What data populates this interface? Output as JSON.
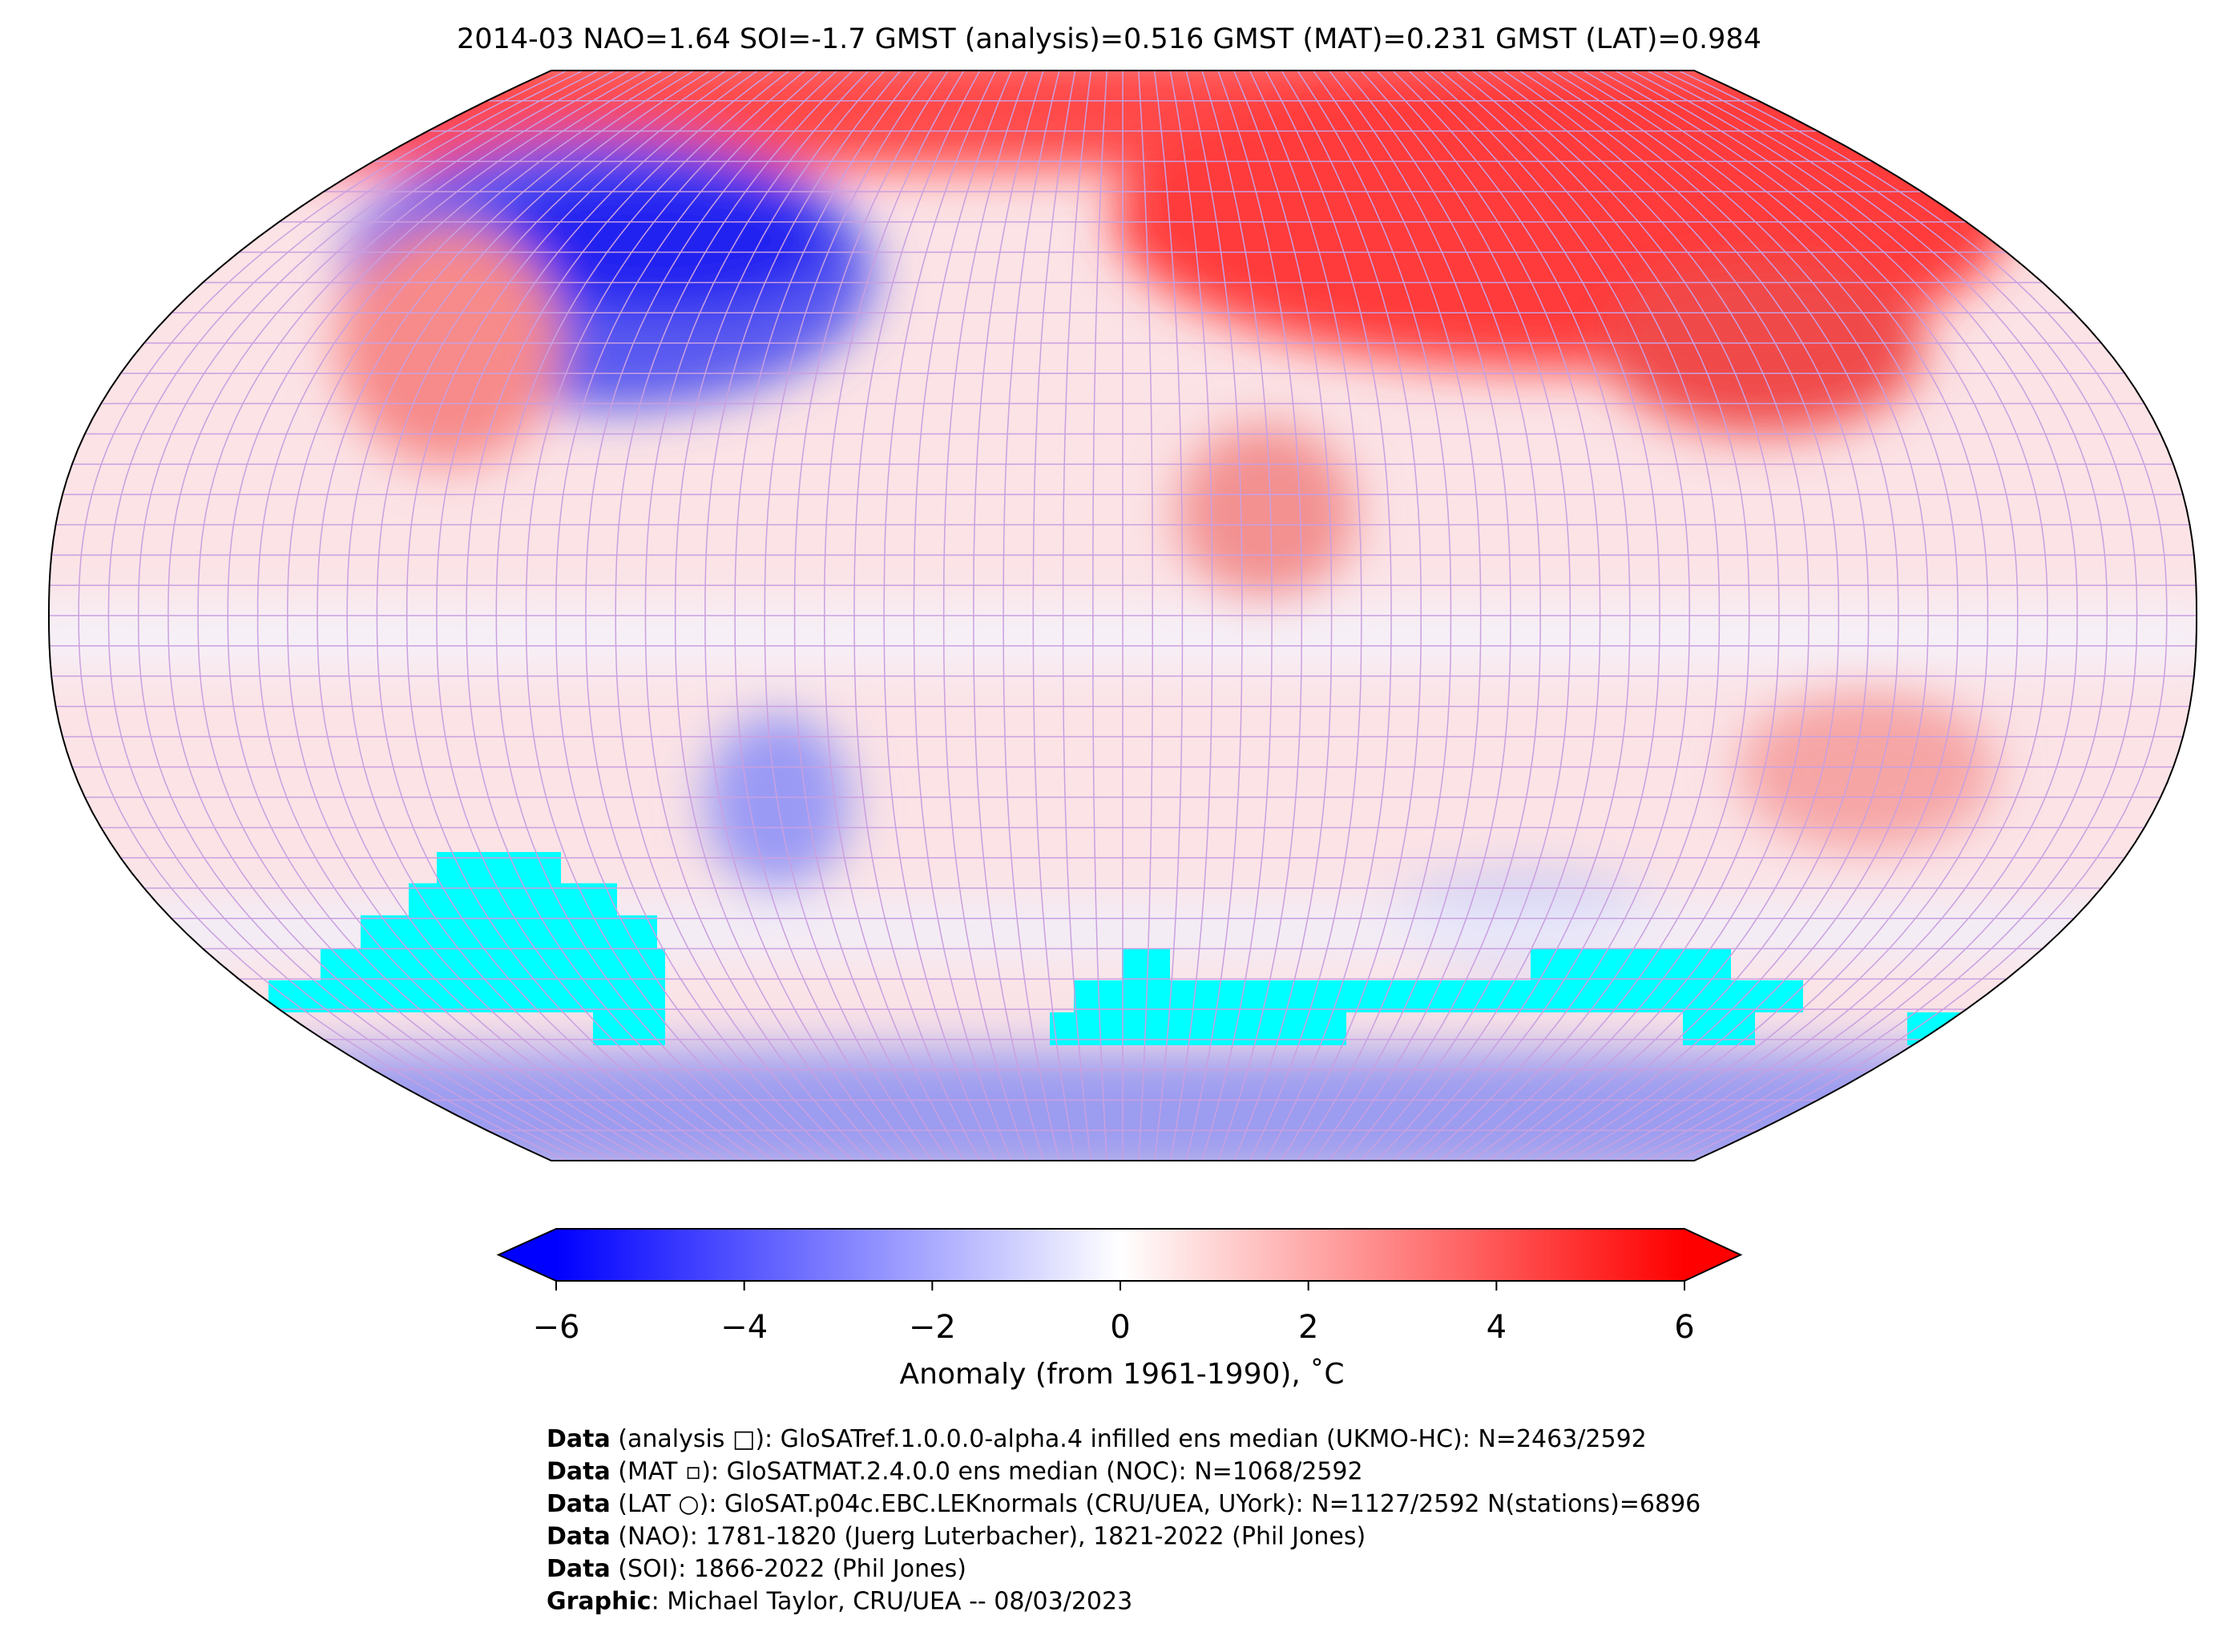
{
  "title": "2014-03 NAO=1.64 SOI=-1.7 GMST (analysis)=0.516 GMST (MAT)=0.231 GMST (LAT)=0.984",
  "colorbar": {
    "label": "Anomaly (from 1961-1990), ˚C",
    "lim": [
      -6,
      6
    ],
    "ticks": [
      {
        "value": -6,
        "label": "−6"
      },
      {
        "value": -4,
        "label": "−4"
      },
      {
        "value": -2,
        "label": "−2"
      },
      0,
      2,
      4,
      6
    ],
    "colors": [
      "#0000ff",
      "#ffffff",
      "#ff0000"
    ]
  },
  "credits": [
    {
      "bold": "Data",
      "text": " (analysis □): GloSATref.1.0.0.0-alpha.4 infilled ens median (UKMO-HC): N=2463/2592"
    },
    {
      "bold": "Data",
      "text": " (MAT ▫): GloSATMAT.2.4.0.0 ens median (NOC): N=1068/2592"
    },
    {
      "bold": "Data",
      "text": " (LAT ○): GloSAT.p04c.EBC.LEKnormals (CRU/UEA, UYork): N=1127/2592 N(stations)=6896"
    },
    {
      "bold": "Data",
      "text": " (NAO): 1781-1820 (Juerg Luterbacher), 1821-2022 (Phil Jones)"
    },
    {
      "bold": "Data",
      "text": " (SOI): 1866-2022 (Phil Jones)"
    },
    {
      "bold": "Graphic",
      "text": ": Michael Taylor, CRU/UEA -- 08/03/2023"
    }
  ]
}
